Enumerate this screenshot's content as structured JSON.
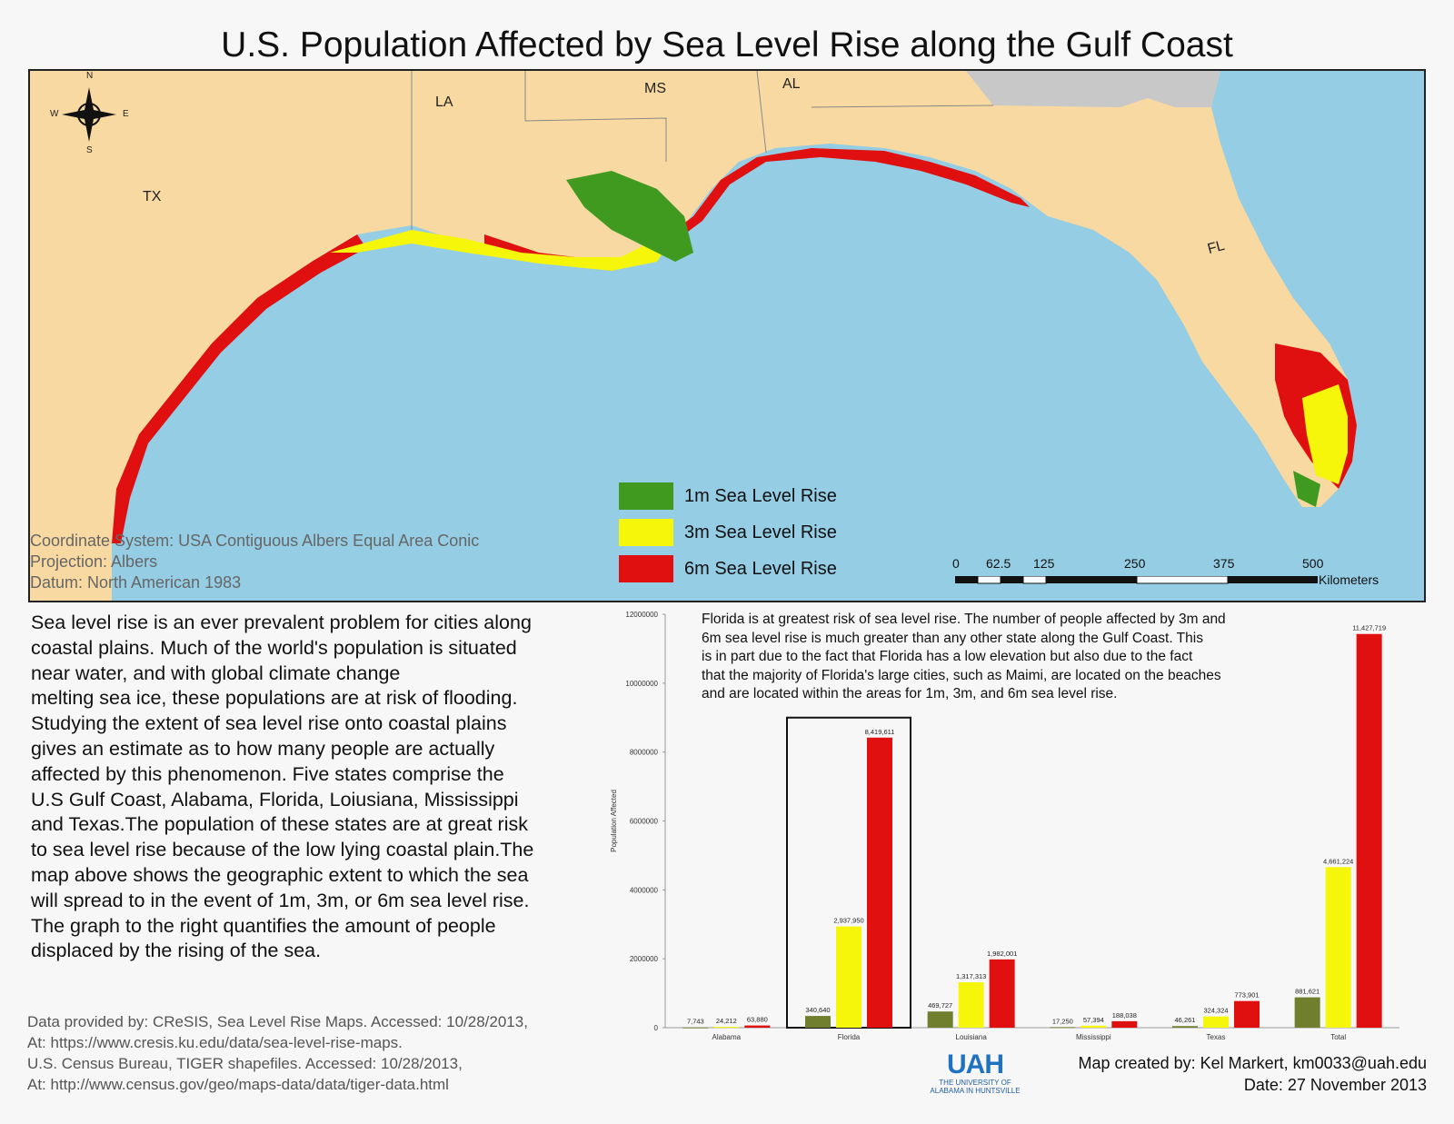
{
  "title": "U.S. Population Affected by Sea Level Rise along the Gulf Coast",
  "map": {
    "compass": {
      "n": "N",
      "s": "S",
      "e": "E",
      "w": "W"
    },
    "state_labels": {
      "tx": "TX",
      "la": "LA",
      "ms": "MS",
      "al": "AL",
      "fl": "FL"
    },
    "legend": [
      {
        "label": "1m Sea Level Rise",
        "color": "#3f9a1f"
      },
      {
        "label": "3m Sea Level Rise",
        "color": "#f6f60a"
      },
      {
        "label": "6m Sea Level Rise",
        "color": "#e01010"
      }
    ],
    "meta": {
      "coordinate_system": "Coordinate System: USA Contiguous Albers Equal Area Conic",
      "projection": "Projection: Albers",
      "datum": "Datum: North American 1983"
    },
    "scale": {
      "ticks": [
        "0",
        "62.5",
        "125",
        "250",
        "375",
        "500"
      ],
      "units": "Kilometers"
    },
    "colors": {
      "water": "#94cde4",
      "land": "#f8d9a1",
      "other_land": "#c8c8c8"
    }
  },
  "body_text": "Sea level rise is an ever prevalent problem for cities along\ncoastal plains. Much of the world's population is situated\nnear water, and with global climate change\nmelting sea ice, these populations are at risk of flooding.\nStudying the extent of sea level rise onto coastal plains\ngives an estimate as to how many people are actually\naffected by this phenomenon. Five states comprise the\nU.S Gulf Coast, Alabama, Florida, Loiusiana, Mississippi\nand Texas.The population of these states are at great risk\nto sea level rise because of the low lying coastal plain.The\n map above shows the geographic extent to which the sea\nwill spread to in the event of 1m, 3m, or 6m sea level rise.\nThe graph to the right quantifies the amount of people\ndisplaced by the rising of the sea.",
  "sources": "Data provided by: CReSIS, Sea Level Rise Maps. Accessed: 10/28/2013,\nAt: https://www.cresis.ku.edu/data/sea-level-rise-maps.\nU.S. Census Bureau, TIGER shapefiles. Accessed: 10/28/2013,\nAt: http://www.census.gov/geo/maps-data/data/tiger-data.html",
  "chart_note": "Florida is at greatest risk of sea level rise. The number of people affected by 3m and\n6m sea level rise is much greater than any other state along the Gulf Coast. This\nis in part due to the fact that Florida has a low elevation but also due to the fact\nthat the majority of Florida's large cities, such as Maimi, are located on the  beaches\nand are located within the areas for 1m, 3m, and 6m sea level rise.",
  "chart_data": {
    "type": "bar",
    "categories": [
      "Alabama",
      "Florida",
      "Louisiana",
      "Mississippi",
      "Texas",
      "Total"
    ],
    "series": [
      {
        "color": "#6f7f2e",
        "values": [
          7743,
          340640,
          469727,
          17250,
          46261,
          881621
        ],
        "labels": [
          "7,743",
          "340,640",
          "469,727",
          "17,250",
          "46,261",
          "881,621"
        ]
      },
      {
        "color": "#f6f60a",
        "values": [
          24212,
          2937950,
          1317313,
          57394,
          324324,
          4661224
        ],
        "labels": [
          "24,212",
          "2,937,950",
          "1,317,313",
          "57,394",
          "324,324",
          "4,661,224"
        ]
      },
      {
        "color": "#e01010",
        "values": [
          63880,
          8419611,
          1982001,
          188038,
          773901,
          11427719
        ],
        "labels": [
          "63,880",
          "8,419,611",
          "1,982,001",
          "188,038",
          "773,901",
          "11,427,719"
        ]
      }
    ],
    "yticks": [
      "0",
      "2000000",
      "4000000",
      "6000000",
      "8000000",
      "10000000",
      "12000000"
    ],
    "ylim": [
      0,
      12000000
    ],
    "ylabel": "Population Affected",
    "highlight": "Florida"
  },
  "credit": {
    "author": "Map created by: Kel Markert, km0033@uah.edu",
    "date": "Date: 27 November 2013"
  },
  "logo": {
    "mark": "UAH",
    "line1": "THE UNIVERSITY OF",
    "line2": "ALABAMA IN HUNTSVILLE"
  }
}
